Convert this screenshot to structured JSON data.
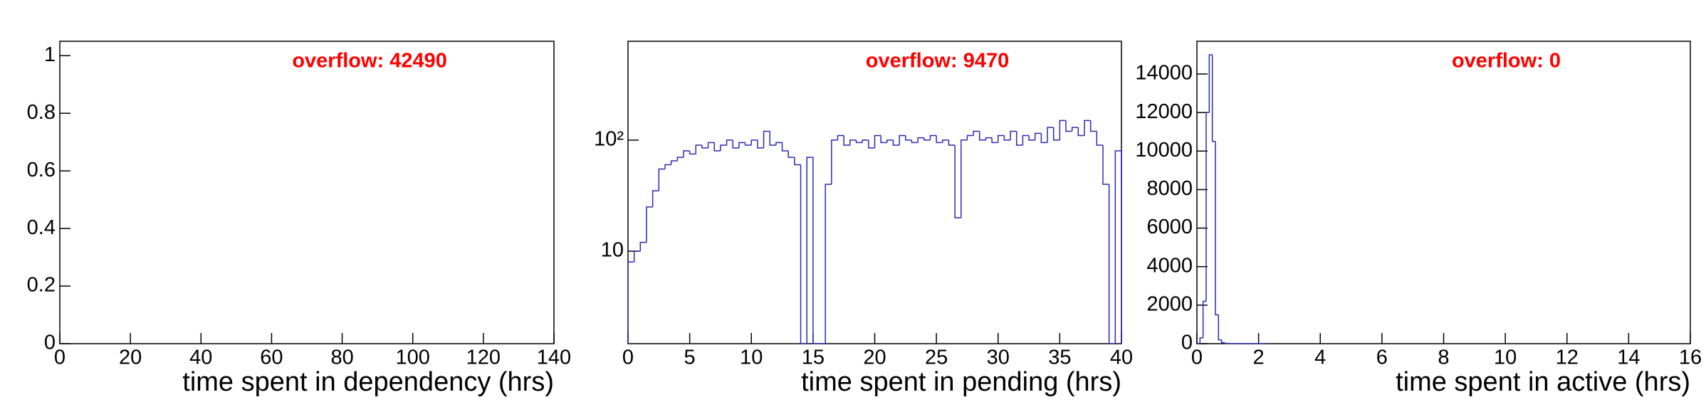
{
  "chart_data": [
    {
      "type": "histogram",
      "annotation": "overflow: 42490",
      "annotation_color": "#ff0000",
      "xlabel": "time spent in dependency (hrs)",
      "xlim": [
        0,
        140
      ],
      "xticks": [
        0,
        20,
        40,
        60,
        80,
        100,
        120,
        140
      ],
      "ylim": [
        0,
        1.05
      ],
      "yticks": [
        0,
        0.2,
        0.4,
        0.6,
        0.8,
        1
      ],
      "log_y": false,
      "color": "#2b2bb0"
    },
    {
      "type": "histogram",
      "annotation": "overflow: 9470",
      "annotation_color": "#ff0000",
      "xlabel": "time spent in pending (hrs)",
      "xlim": [
        0,
        40
      ],
      "xticks": [
        0,
        5,
        10,
        15,
        20,
        25,
        30,
        35,
        40
      ],
      "ylim": [
        1.47,
        776
      ],
      "yticks": [
        10,
        {
          "value": 100,
          "label": "10²"
        }
      ],
      "log_y": true,
      "color": "#2b2bb0",
      "bins": [
        0,
        0.5,
        1,
        1.5,
        2,
        2.5,
        3,
        3.5,
        4,
        4.5,
        5,
        5.5,
        6,
        6.5,
        7,
        7.5,
        8,
        8.5,
        9,
        9.5,
        10,
        10.5,
        11,
        11.5,
        12,
        12.5,
        13,
        13.5,
        14,
        14.5,
        15,
        15.5,
        16,
        16.5,
        17,
        17.5,
        18,
        18.5,
        19,
        19.5,
        20,
        20.5,
        21,
        21.5,
        22,
        22.5,
        23,
        23.5,
        24,
        24.5,
        25,
        25.5,
        26,
        26.5,
        27,
        27.5,
        28,
        28.5,
        29,
        29.5,
        30,
        30.5,
        31,
        31.5,
        32,
        32.5,
        33,
        33.5,
        34,
        34.5,
        35,
        35.5,
        36,
        36.5,
        37,
        37.5,
        38,
        38.5,
        39,
        39.5,
        40
      ],
      "values": [
        8,
        10,
        12,
        25,
        35,
        55,
        60,
        65,
        70,
        80,
        75,
        90,
        85,
        95,
        80,
        90,
        100,
        85,
        95,
        90,
        100,
        85,
        120,
        90,
        95,
        80,
        70,
        60,
        0,
        70,
        0,
        0,
        40,
        100,
        110,
        90,
        100,
        95,
        100,
        85,
        110,
        95,
        100,
        90,
        110,
        100,
        95,
        105,
        100,
        110,
        95,
        100,
        90,
        20,
        100,
        110,
        120,
        100,
        105,
        95,
        110,
        100,
        120,
        90,
        110,
        100,
        115,
        95,
        130,
        100,
        150,
        120,
        130,
        110,
        150,
        120,
        90,
        40,
        0,
        80
      ]
    },
    {
      "type": "histogram",
      "annotation": "overflow: 0",
      "annotation_color": "#ff0000",
      "xlabel": "time spent in active (hrs)",
      "xlim": [
        0,
        16
      ],
      "xticks": [
        0,
        2,
        4,
        6,
        8,
        10,
        12,
        14,
        16
      ],
      "ylim": [
        0,
        15700
      ],
      "yticks": [
        0,
        2000,
        4000,
        6000,
        8000,
        10000,
        12000,
        14000
      ],
      "log_y": false,
      "color": "#2b2bb0",
      "bins": [
        0,
        0.1,
        0.2,
        0.3,
        0.4,
        0.5,
        0.6,
        0.7,
        0.8,
        0.9,
        1,
        1.1,
        1.2,
        1.3,
        1.4,
        1.5,
        1.6,
        1.7,
        1.8,
        1.9,
        2,
        2.1,
        2.2
      ],
      "values": [
        0,
        300,
        2200,
        12000,
        15000,
        10500,
        1500,
        200,
        50,
        20,
        10,
        5,
        5,
        3,
        2,
        2,
        1,
        1,
        1,
        2,
        3,
        1
      ]
    }
  ]
}
